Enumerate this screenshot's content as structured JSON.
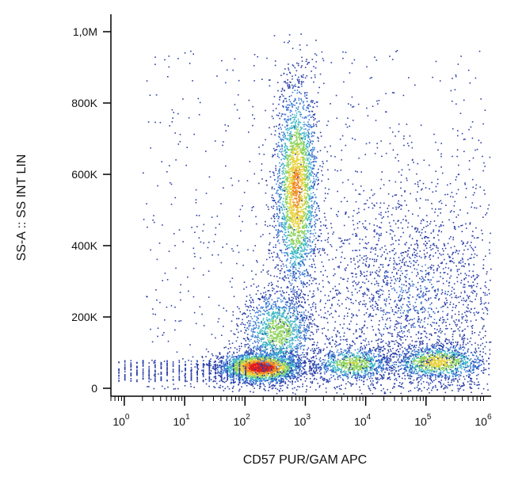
{
  "chart_data": {
    "type": "scatter",
    "subtype": "flow-cytometry density dot plot",
    "title": "",
    "xlabel": "CD57 PUR/GAM APC",
    "ylabel": "SS-A :: SS INT LIN",
    "x_scale": "log",
    "y_scale": "linear",
    "xlim": [
      0.6,
      1200000
    ],
    "ylim": [
      0,
      1000000
    ],
    "x_tick_labels": [
      {
        "value": 1,
        "base": "10",
        "exp": "0"
      },
      {
        "value": 10,
        "base": "10",
        "exp": "1"
      },
      {
        "value": 100,
        "base": "10",
        "exp": "2"
      },
      {
        "value": 1000,
        "base": "10",
        "exp": "3"
      },
      {
        "value": 10000,
        "base": "10",
        "exp": "4"
      },
      {
        "value": 100000,
        "base": "10",
        "exp": "5"
      },
      {
        "value": 1000000,
        "base": "10",
        "exp": "6"
      }
    ],
    "y_tick_labels": [
      {
        "value": 0,
        "label": "0"
      },
      {
        "value": 200000,
        "label": "200K"
      },
      {
        "value": 400000,
        "label": "400K"
      },
      {
        "value": 600000,
        "label": "600K"
      },
      {
        "value": 800000,
        "label": "800K"
      },
      {
        "value": 1000000,
        "label": "1,0M"
      }
    ],
    "grid": false,
    "legend": "none",
    "color_scale": [
      "#2b3fa8",
      "#3a7bd5",
      "#3fb8c8",
      "#8cd25a",
      "#e6d23a",
      "#f08a24",
      "#e0201b"
    ],
    "populations": [
      {
        "label": "cluster",
        "x_center": 700,
        "y_center": 560000,
        "x_spread_decades": 0.18,
        "y_spread": 150000,
        "peak_density": 0.75
      },
      {
        "label": "cluster",
        "x_center": 180,
        "y_center": 60000,
        "x_spread_decades": 0.35,
        "y_spread": 22000,
        "peak_density": 1.0
      },
      {
        "label": "cluster",
        "x_center": 350,
        "y_center": 160000,
        "x_spread_decades": 0.3,
        "y_spread": 60000,
        "peak_density": 0.5
      },
      {
        "label": "cluster",
        "x_center": 6000,
        "y_center": 70000,
        "x_spread_decades": 0.35,
        "y_spread": 25000,
        "peak_density": 0.55
      },
      {
        "label": "cluster",
        "x_center": 150000,
        "y_center": 75000,
        "x_spread_decades": 0.4,
        "y_spread": 25000,
        "peak_density": 0.65
      },
      {
        "label": "cluster",
        "x_center": 60000,
        "y_center": 250000,
        "x_spread_decades": 0.9,
        "y_spread": 180000,
        "peak_density": 0.12
      }
    ]
  }
}
